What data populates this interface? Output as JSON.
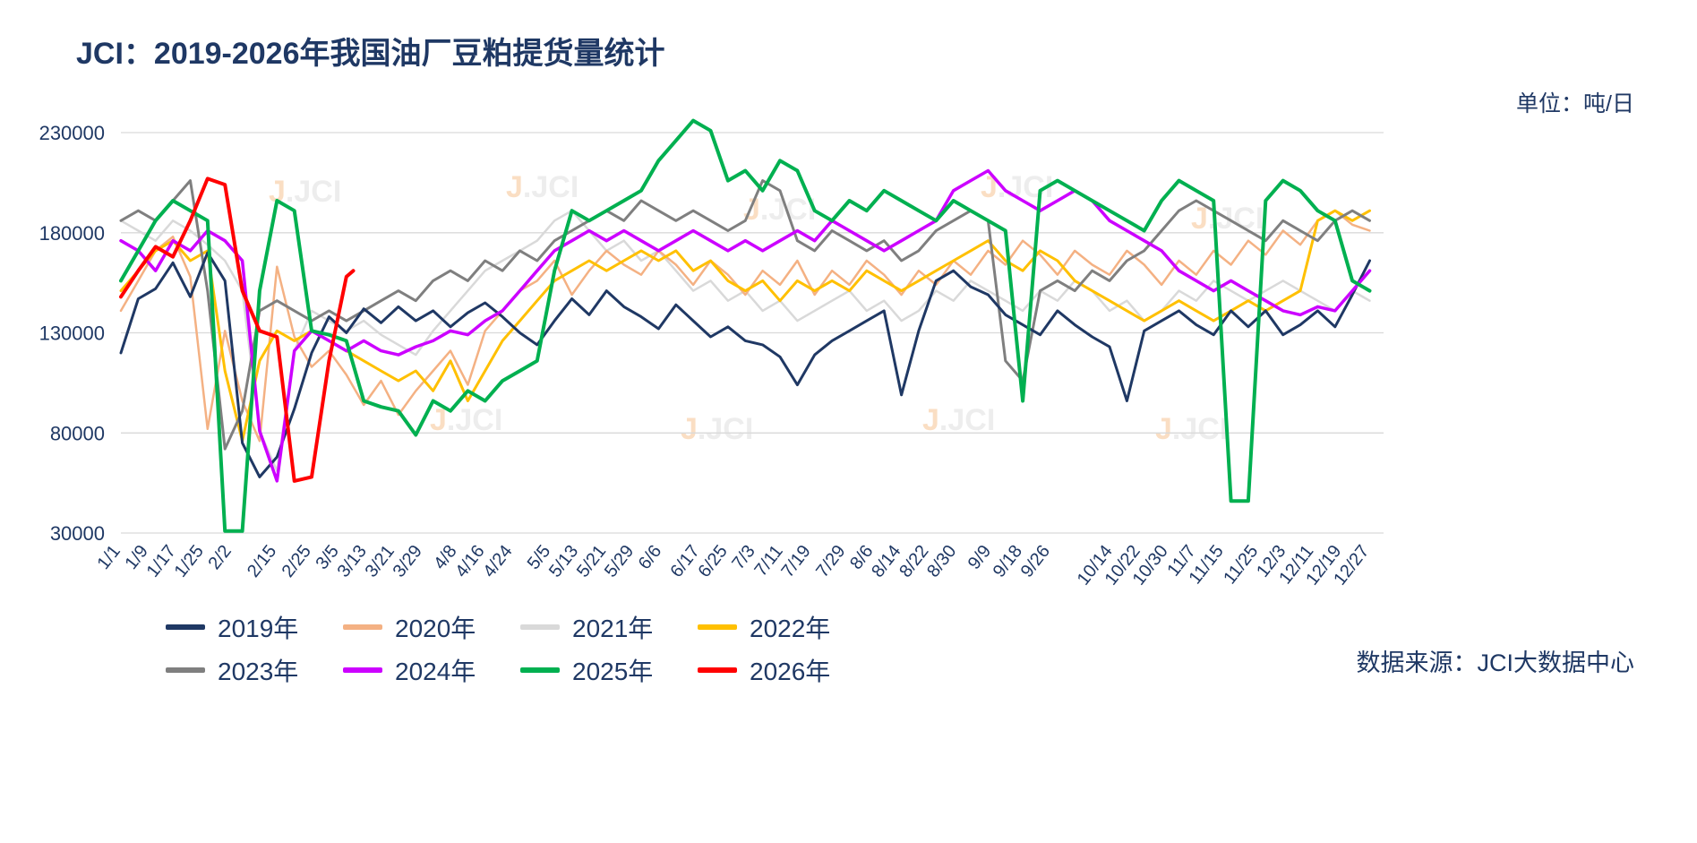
{
  "title": "JCI：2019-2026年我国油厂豆粕提货量统计",
  "unit_label": "单位：吨/日",
  "source_label": "数据来源：JCI大数据中心",
  "watermark": {
    "accent": "J",
    "rest": ".JCI"
  },
  "colors": {
    "title_text": "#1F3864",
    "axis_text": "#1F3864",
    "gridline": "#D9D9D9",
    "background": "#FFFFFF"
  },
  "chart_data": {
    "type": "line",
    "title": "JCI：2019-2026年我国油厂豆粕提货量统计",
    "xlabel": "",
    "ylabel": "吨/日",
    "ylim": [
      30000,
      230000
    ],
    "yticks": [
      30000,
      80000,
      130000,
      180000,
      230000
    ],
    "grid": true,
    "legend_position": "bottom",
    "x_range": [
      1,
      365
    ],
    "xtick_labels": [
      "1/1",
      "1/9",
      "1/17",
      "1/25",
      "2/2",
      "2/15",
      "2/25",
      "3/5",
      "3/13",
      "3/21",
      "3/29",
      "4/8",
      "4/16",
      "4/24",
      "5/5",
      "5/13",
      "5/21",
      "5/29",
      "6/6",
      "6/17",
      "6/25",
      "7/3",
      "7/11",
      "7/19",
      "7/29",
      "8/6",
      "8/14",
      "8/22",
      "8/30",
      "9/9",
      "9/18",
      "9/26",
      "10/14",
      "10/22",
      "10/30",
      "11/7",
      "11/15",
      "11/25",
      "12/3",
      "12/11",
      "12/19",
      "12/27"
    ],
    "xtick_days": [
      1,
      9,
      17,
      25,
      33,
      46,
      56,
      64,
      72,
      80,
      88,
      98,
      106,
      114,
      125,
      133,
      141,
      149,
      157,
      168,
      176,
      184,
      192,
      200,
      210,
      218,
      226,
      234,
      242,
      252,
      261,
      269,
      287,
      295,
      303,
      311,
      319,
      329,
      337,
      345,
      353,
      361
    ],
    "days": [
      1,
      6,
      11,
      16,
      21,
      26,
      31,
      36,
      41,
      46,
      51,
      56,
      61,
      66,
      71,
      76,
      81,
      86,
      91,
      96,
      101,
      106,
      111,
      116,
      121,
      126,
      131,
      136,
      141,
      146,
      151,
      156,
      161,
      166,
      171,
      176,
      181,
      186,
      191,
      196,
      201,
      206,
      211,
      216,
      221,
      226,
      231,
      236,
      241,
      246,
      251,
      256,
      261,
      266,
      271,
      276,
      281,
      286,
      291,
      296,
      301,
      306,
      311,
      316,
      321,
      326,
      331,
      336,
      341,
      346,
      351,
      356,
      361
    ],
    "series": [
      {
        "name": "2019年",
        "color": "#1F3864",
        "width": 3,
        "values": [
          120000,
          147000,
          152000,
          165000,
          148000,
          170000,
          156000,
          75000,
          58000,
          68000,
          92000,
          120000,
          138000,
          130000,
          142000,
          135000,
          143000,
          136000,
          141000,
          133000,
          140000,
          145000,
          138000,
          130000,
          124000,
          136000,
          147000,
          139000,
          151000,
          143000,
          138000,
          132000,
          144000,
          136000,
          128000,
          133000,
          126000,
          124000,
          118000,
          104000,
          119000,
          126000,
          131000,
          136000,
          141000,
          99000,
          131000,
          156000,
          161000,
          153000,
          149000,
          139000,
          134000,
          129000,
          141000,
          134000,
          128000,
          123000,
          96000,
          131000,
          136000,
          141000,
          134000,
          129000,
          141000,
          133000,
          141000,
          129000,
          134000,
          141000,
          133000,
          149000,
          166000
        ]
      },
      {
        "name": "2020年",
        "color": "#F4B183",
        "width": 2.5,
        "values": [
          141000,
          156000,
          171000,
          178000,
          158000,
          82000,
          131000,
          96000,
          76000,
          163000,
          128000,
          113000,
          121000,
          109000,
          94000,
          106000,
          89000,
          101000,
          111000,
          121000,
          104000,
          131000,
          141000,
          151000,
          156000,
          166000,
          149000,
          161000,
          171000,
          164000,
          159000,
          171000,
          164000,
          154000,
          166000,
          159000,
          149000,
          161000,
          154000,
          166000,
          149000,
          161000,
          154000,
          166000,
          159000,
          149000,
          161000,
          154000,
          166000,
          159000,
          171000,
          164000,
          176000,
          169000,
          159000,
          171000,
          164000,
          159000,
          171000,
          164000,
          154000,
          166000,
          159000,
          171000,
          164000,
          176000,
          169000,
          181000,
          174000,
          186000,
          191000,
          184000,
          181000
        ]
      },
      {
        "name": "2021年",
        "color": "#D9D9D9",
        "width": 2.5,
        "values": [
          186000,
          181000,
          176000,
          186000,
          181000,
          174000,
          166000,
          151000,
          81000,
          61000,
          121000,
          141000,
          136000,
          131000,
          136000,
          129000,
          124000,
          119000,
          131000,
          141000,
          151000,
          161000,
          166000,
          171000,
          176000,
          186000,
          191000,
          181000,
          171000,
          176000,
          166000,
          171000,
          161000,
          151000,
          156000,
          146000,
          151000,
          141000,
          146000,
          136000,
          141000,
          146000,
          151000,
          141000,
          146000,
          136000,
          141000,
          151000,
          146000,
          156000,
          151000,
          146000,
          141000,
          151000,
          146000,
          156000,
          151000,
          141000,
          146000,
          136000,
          141000,
          151000,
          146000,
          156000,
          151000,
          146000,
          151000,
          156000,
          151000,
          146000,
          141000,
          151000,
          146000
        ]
      },
      {
        "name": "2022年",
        "color": "#FFC000",
        "width": 3,
        "values": [
          151000,
          161000,
          171000,
          176000,
          166000,
          171000,
          111000,
          76000,
          116000,
          131000,
          126000,
          131000,
          126000,
          121000,
          116000,
          111000,
          106000,
          111000,
          101000,
          116000,
          96000,
          111000,
          126000,
          136000,
          146000,
          156000,
          161000,
          166000,
          161000,
          166000,
          171000,
          166000,
          171000,
          161000,
          166000,
          156000,
          151000,
          156000,
          146000,
          156000,
          151000,
          156000,
          151000,
          161000,
          156000,
          151000,
          156000,
          161000,
          166000,
          171000,
          176000,
          166000,
          161000,
          171000,
          166000,
          156000,
          151000,
          146000,
          141000,
          136000,
          141000,
          146000,
          141000,
          136000,
          141000,
          146000,
          141000,
          146000,
          151000,
          186000,
          191000,
          186000,
          191000
        ]
      },
      {
        "name": "2023年",
        "color": "#7F7F7F",
        "width": 3,
        "values": [
          186000,
          191000,
          186000,
          196000,
          206000,
          151000,
          72000,
          91000,
          141000,
          146000,
          141000,
          136000,
          141000,
          136000,
          141000,
          146000,
          151000,
          146000,
          156000,
          161000,
          156000,
          166000,
          161000,
          171000,
          166000,
          176000,
          181000,
          186000,
          191000,
          186000,
          196000,
          191000,
          186000,
          191000,
          186000,
          181000,
          186000,
          206000,
          201000,
          176000,
          171000,
          181000,
          176000,
          171000,
          176000,
          166000,
          171000,
          181000,
          186000,
          191000,
          186000,
          116000,
          106000,
          151000,
          156000,
          151000,
          161000,
          156000,
          166000,
          171000,
          181000,
          191000,
          196000,
          191000,
          186000,
          181000,
          176000,
          186000,
          181000,
          176000,
          186000,
          191000,
          186000
        ]
      },
      {
        "name": "2024年",
        "color": "#CC00FF",
        "width": 3.5,
        "values": [
          176000,
          171000,
          161000,
          176000,
          171000,
          181000,
          176000,
          166000,
          81000,
          56000,
          121000,
          131000,
          126000,
          121000,
          126000,
          121000,
          119000,
          123000,
          126000,
          131000,
          129000,
          136000,
          141000,
          151000,
          161000,
          171000,
          176000,
          181000,
          176000,
          181000,
          176000,
          171000,
          176000,
          181000,
          176000,
          171000,
          176000,
          171000,
          176000,
          181000,
          176000,
          186000,
          181000,
          176000,
          171000,
          176000,
          181000,
          186000,
          201000,
          206000,
          211000,
          201000,
          196000,
          191000,
          196000,
          201000,
          196000,
          186000,
          181000,
          176000,
          171000,
          161000,
          156000,
          151000,
          156000,
          151000,
          146000,
          141000,
          139000,
          143000,
          141000,
          151000,
          161000
        ]
      },
      {
        "name": "2025年",
        "color": "#00B050",
        "width": 4,
        "values": [
          156000,
          171000,
          186000,
          196000,
          191000,
          186000,
          31000,
          31000,
          151000,
          196000,
          191000,
          131000,
          129000,
          126000,
          96000,
          93000,
          91000,
          79000,
          96000,
          91000,
          101000,
          96000,
          106000,
          111000,
          116000,
          161000,
          191000,
          186000,
          191000,
          196000,
          201000,
          216000,
          226000,
          236000,
          231000,
          206000,
          211000,
          201000,
          216000,
          211000,
          191000,
          186000,
          196000,
          191000,
          201000,
          196000,
          191000,
          186000,
          196000,
          191000,
          186000,
          181000,
          96000,
          201000,
          206000,
          201000,
          196000,
          191000,
          186000,
          181000,
          196000,
          206000,
          201000,
          196000,
          46000,
          46000,
          196000,
          206000,
          201000,
          191000,
          186000,
          156000,
          151000
        ]
      },
      {
        "name": "2026年",
        "color": "#FF0000",
        "width": 4,
        "days": [
          1,
          6,
          11,
          16,
          21,
          26,
          31,
          36,
          41,
          46,
          51,
          56,
          61,
          66,
          68
        ],
        "values": [
          148000,
          161000,
          173000,
          168000,
          186000,
          207000,
          204000,
          151000,
          131000,
          128000,
          56000,
          58000,
          116000,
          158000,
          161000
        ]
      }
    ]
  }
}
